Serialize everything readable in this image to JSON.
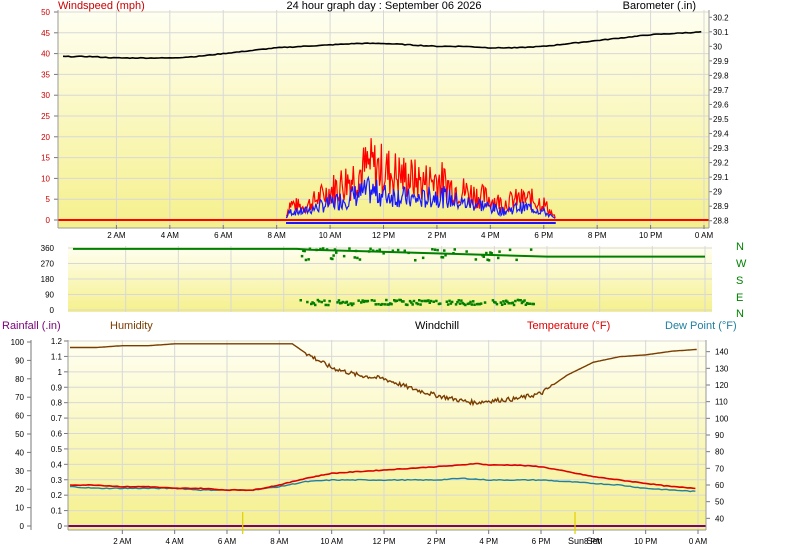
{
  "colors": {
    "background": "#ffffff",
    "plot_top": "#fffff2",
    "plot_bottom": "#f5f08c",
    "grid": "#d8d8d8",
    "windspeed": "#ff0000",
    "windspeed_label": "#cc0000",
    "gust_avg": "#1818ff",
    "barometer": "#000000",
    "direction": "#008000",
    "humidity": "#7a3d00",
    "temperature": "#dd0000",
    "dewpoint": "#2080a0",
    "windchill": "#000000",
    "rainfall": "#7a007a",
    "sun_marker": "#e0d000"
  },
  "header": {
    "windspeed_label": "Windspeed (mph)",
    "title": "24 hour graph day : September 06 2026",
    "barometer_label": "Barometer (.in)"
  },
  "top_chart": {
    "windspeed_ticks": [
      "50",
      "45",
      "40",
      "35",
      "30",
      "25",
      "20",
      "15",
      "10",
      "5",
      "0"
    ],
    "barometer_ticks": [
      "30.2",
      "30.1",
      "30",
      "29.9",
      "29.8",
      "29.7",
      "29.6",
      "29.5",
      "29.4",
      "29.3",
      "29.2",
      "29.1",
      "29",
      "28.9",
      "28.8"
    ],
    "time_ticks": [
      "2 AM",
      "4 AM",
      "6 AM",
      "8 AM",
      "10 AM",
      "12 PM",
      "2 PM",
      "4 PM",
      "6 PM",
      "8 PM",
      "10 PM",
      "0 AM"
    ]
  },
  "direction_chart": {
    "degree_ticks": [
      "360",
      "270",
      "180",
      "90",
      "0"
    ],
    "compass_labels": [
      "N",
      "W",
      "S",
      "E",
      "N"
    ]
  },
  "bottom_header": {
    "rainfall_label": "Rainfall (.in)",
    "humidity_label": "Humidity",
    "windchill_label": "Windchill",
    "temperature_label": "Temperature (°F)",
    "dewpoint_label": "Dew Point (°F)"
  },
  "bottom_chart": {
    "humidity_ticks": [
      "100",
      "90",
      "80",
      "70",
      "60",
      "50",
      "40",
      "30",
      "20",
      "10",
      "0"
    ],
    "rain_ticks": [
      "1.2",
      "1.1",
      "1",
      "0.9",
      "0.8",
      "0.7",
      "0.6",
      "0.5",
      "0.4",
      "0.3",
      "0.2",
      "0.1",
      "0"
    ],
    "temperature_ticks": [
      "140",
      "130",
      "120",
      "110",
      "100",
      "90",
      "80",
      "70",
      "60",
      "50",
      "40"
    ],
    "time_ticks": [
      "2 AM",
      "4 AM",
      "6 AM",
      "8 AM",
      "10 AM",
      "12 PM",
      "2 PM",
      "4 PM",
      "6 PM",
      "8 PM",
      "10 PM",
      "0 AM"
    ],
    "sunset_label": "Sun Set"
  },
  "chart_data": [
    {
      "type": "line",
      "title": "24 hour graph day : September 06 2026",
      "x_unit": "hour of day",
      "xlim": [
        0,
        24
      ],
      "series": [
        {
          "name": "Barometer (.in)",
          "axis": "right",
          "ylim": [
            28.75,
            30.25
          ],
          "x": [
            0,
            1,
            2,
            3,
            4,
            5,
            6,
            7,
            8,
            9,
            10,
            11,
            12,
            13,
            14,
            15,
            16,
            17,
            18,
            19,
            20,
            21,
            22,
            23,
            24
          ],
          "y": [
            29.93,
            29.93,
            29.92,
            29.92,
            29.92,
            29.93,
            29.95,
            29.97,
            29.99,
            30.0,
            30.01,
            30.02,
            30.02,
            30.01,
            30.0,
            30.0,
            29.99,
            29.99,
            30.0,
            30.02,
            30.04,
            30.06,
            30.08,
            30.09,
            30.1
          ]
        },
        {
          "name": "Windspeed (mph)",
          "axis": "left",
          "ylim": [
            -1,
            50
          ],
          "x": [
            0,
            8.3,
            8.5,
            9,
            9.5,
            10,
            10.5,
            11,
            11.5,
            12,
            12.5,
            13,
            13.5,
            14,
            14.5,
            15,
            15.5,
            16,
            16.5,
            17,
            17.5,
            18,
            18.5,
            19,
            24
          ],
          "y": [
            0,
            0,
            4,
            3,
            5,
            7,
            9,
            11,
            13,
            12,
            11,
            10,
            9,
            10,
            8,
            7,
            6,
            5,
            4,
            5,
            5,
            4,
            0,
            0,
            0
          ]
        },
        {
          "name": "Average windspeed (mph)",
          "axis": "left",
          "ylim": [
            -1,
            50
          ],
          "x": [
            0,
            8.3,
            8.5,
            9,
            9.5,
            10,
            10.5,
            11,
            11.5,
            12,
            12.5,
            13,
            13.5,
            14,
            14.5,
            15,
            15.5,
            16,
            16.5,
            17,
            17.5,
            18,
            18.5,
            19,
            24
          ],
          "y": [
            0,
            0,
            2,
            2,
            3,
            4,
            5,
            6,
            7,
            6,
            6,
            5,
            5,
            6,
            5,
            4,
            4,
            3,
            2,
            3,
            3,
            2,
            0,
            0,
            0
          ]
        }
      ]
    },
    {
      "type": "scatter",
      "name": "Wind direction",
      "x_unit": "hour of day",
      "xlim": [
        0,
        24
      ],
      "ylim": [
        0,
        360
      ],
      "line_x": [
        0,
        8.5,
        9.0,
        18.0,
        24
      ],
      "line_y": [
        355,
        355,
        350,
        310,
        310
      ],
      "scatter_x_range": [
        8.6,
        17.5
      ],
      "scatter_y_groups": [
        [
          30,
          60
        ],
        [
          330,
          360
        ],
        [
          290,
          320
        ]
      ]
    },
    {
      "type": "line",
      "x_unit": "hour of day",
      "xlim": [
        0,
        24
      ],
      "series": [
        {
          "name": "Humidity",
          "axis": "left",
          "ylim": [
            0,
            100
          ],
          "x": [
            0,
            1,
            2,
            3,
            4,
            5,
            6,
            7,
            8,
            8.5,
            9,
            10,
            11,
            12,
            13,
            14,
            15,
            15.5,
            16,
            17,
            18,
            19,
            20,
            21,
            22,
            23,
            24
          ],
          "y": [
            97,
            97,
            98,
            98,
            99,
            99,
            99,
            99,
            99,
            99,
            94,
            86,
            82,
            80,
            75,
            71,
            68,
            67,
            68,
            69,
            72,
            82,
            89,
            92,
            93,
            95,
            96
          ]
        },
        {
          "name": "Temperature (°F)",
          "axis": "right",
          "ylim": [
            33,
            147
          ],
          "x": [
            0,
            1,
            2,
            3,
            4,
            5,
            6,
            7,
            8,
            9,
            10,
            11,
            12,
            13,
            14,
            15,
            15.5,
            16,
            17,
            18,
            19,
            20,
            21,
            22,
            23,
            24
          ],
          "y": [
            60,
            60,
            59,
            59,
            58,
            58,
            57,
            57,
            60,
            64,
            67,
            68,
            69,
            70,
            71,
            72,
            73,
            72,
            72,
            71,
            68,
            65,
            63,
            61,
            59,
            58
          ]
        },
        {
          "name": "Dew Point (°F)",
          "axis": "right",
          "ylim": [
            33,
            147
          ],
          "x": [
            0,
            1,
            2,
            3,
            4,
            5,
            6,
            7,
            8,
            9,
            10,
            11,
            12,
            13,
            14,
            15,
            16,
            17,
            18,
            19,
            20,
            21,
            22,
            23,
            24
          ],
          "y": [
            59,
            58,
            58,
            58,
            58,
            57,
            57,
            57,
            59,
            62,
            63,
            63,
            63,
            63,
            63,
            64,
            63,
            63,
            63,
            62,
            61,
            60,
            58,
            57,
            56
          ]
        }
      ],
      "annotations": [
        "Sun Set"
      ]
    }
  ]
}
